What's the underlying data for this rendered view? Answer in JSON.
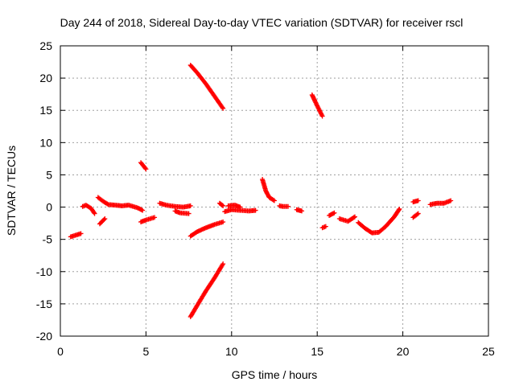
{
  "chart_data": {
    "type": "scatter",
    "title": "Day 244 of 2018, Sidereal Day-to-day VTEC variation (SDTVAR) for receiver rscl",
    "xlabel": "GPS time / hours",
    "ylabel": "SDTVAR / TECUs",
    "xlim": [
      0,
      25
    ],
    "ylim": [
      -20,
      25
    ],
    "xticks": [
      0,
      5,
      10,
      15,
      20,
      25
    ],
    "yticks": [
      -20,
      -15,
      -10,
      -5,
      0,
      5,
      10,
      15,
      20,
      25
    ],
    "xtick_labels": [
      "0",
      "5",
      "10",
      "15",
      "20",
      "25"
    ],
    "ytick_labels": [
      "-20",
      "-15",
      "-10",
      "-5",
      "0",
      "5",
      "10",
      "15",
      "20",
      "25"
    ],
    "grid": true,
    "marker": "+",
    "series": [
      {
        "name": "SDTVAR",
        "color": "#ff0000",
        "segments": [
          [
            [
              0.6,
              -4.6
            ],
            [
              1.2,
              -4.1
            ]
          ],
          [
            [
              1.3,
              0.1
            ],
            [
              1.5,
              0.3
            ],
            [
              1.8,
              -0.2
            ],
            [
              2.0,
              -1.0
            ]
          ],
          [
            [
              2.2,
              1.5
            ],
            [
              2.5,
              0.9
            ],
            [
              2.8,
              0.4
            ],
            [
              3.2,
              0.3
            ],
            [
              3.6,
              0.2
            ],
            [
              4.0,
              0.3
            ],
            [
              4.5,
              -0.1
            ],
            [
              4.8,
              -0.5
            ]
          ],
          [
            [
              2.3,
              -2.6
            ],
            [
              2.6,
              -1.8
            ]
          ],
          [
            [
              4.7,
              6.9
            ],
            [
              5.0,
              5.9
            ]
          ],
          [
            [
              4.7,
              -2.3
            ],
            [
              5.0,
              -2.0
            ],
            [
              5.5,
              -1.6
            ]
          ],
          [
            [
              5.8,
              0.6
            ],
            [
              6.2,
              0.3
            ],
            [
              6.7,
              0.1
            ],
            [
              7.2,
              0.0
            ],
            [
              7.6,
              0.2
            ]
          ],
          [
            [
              6.7,
              -0.6
            ],
            [
              7.0,
              -0.9
            ],
            [
              7.5,
              -1.0
            ]
          ],
          [
            [
              7.6,
              22.0
            ],
            [
              8.0,
              20.8
            ],
            [
              8.5,
              19.1
            ],
            [
              9.0,
              17.2
            ],
            [
              9.5,
              15.3
            ]
          ],
          [
            [
              7.6,
              -17.0
            ],
            [
              8.0,
              -15.2
            ],
            [
              8.5,
              -13.0
            ],
            [
              9.0,
              -11.0
            ],
            [
              9.5,
              -8.8
            ]
          ],
          [
            [
              7.6,
              -4.5
            ],
            [
              8.0,
              -3.8
            ],
            [
              8.5,
              -3.2
            ],
            [
              9.0,
              -2.7
            ],
            [
              9.5,
              -2.3
            ]
          ],
          [
            [
              9.3,
              0.6
            ],
            [
              9.5,
              0.2
            ]
          ],
          [
            [
              9.6,
              -0.7
            ],
            [
              10.0,
              -0.4
            ],
            [
              10.5,
              -0.5
            ],
            [
              11.0,
              -0.6
            ],
            [
              11.4,
              -0.5
            ]
          ],
          [
            [
              9.8,
              0.2
            ],
            [
              10.2,
              0.3
            ],
            [
              10.5,
              0.0
            ]
          ],
          [
            [
              11.8,
              4.3
            ],
            [
              12.0,
              2.5
            ],
            [
              12.2,
              1.5
            ],
            [
              12.5,
              1.0
            ]
          ],
          [
            [
              12.8,
              0.2
            ],
            [
              13.0,
              0.1
            ],
            [
              13.3,
              0.1
            ]
          ],
          [
            [
              13.8,
              -0.4
            ],
            [
              14.1,
              -0.6
            ]
          ],
          [
            [
              14.7,
              17.4
            ],
            [
              15.0,
              15.7
            ],
            [
              15.3,
              14.1
            ]
          ],
          [
            [
              15.3,
              -3.2
            ],
            [
              15.5,
              -3.0
            ]
          ],
          [
            [
              15.7,
              -1.3
            ],
            [
              16.0,
              -0.9
            ]
          ],
          [
            [
              16.3,
              -1.8
            ],
            [
              16.8,
              -2.2
            ],
            [
              17.2,
              -1.5
            ]
          ],
          [
            [
              17.4,
              -2.4
            ],
            [
              17.8,
              -3.3
            ],
            [
              18.2,
              -4.0
            ],
            [
              18.6,
              -3.9
            ],
            [
              19.0,
              -3.0
            ],
            [
              19.5,
              -1.5
            ],
            [
              19.8,
              -0.3
            ]
          ],
          [
            [
              20.6,
              -1.6
            ],
            [
              20.9,
              -1.0
            ]
          ],
          [
            [
              20.6,
              0.8
            ],
            [
              20.9,
              1.0
            ]
          ],
          [
            [
              21.6,
              0.4
            ],
            [
              22.0,
              0.6
            ],
            [
              22.4,
              0.6
            ],
            [
              22.8,
              1.0
            ]
          ]
        ]
      }
    ]
  }
}
